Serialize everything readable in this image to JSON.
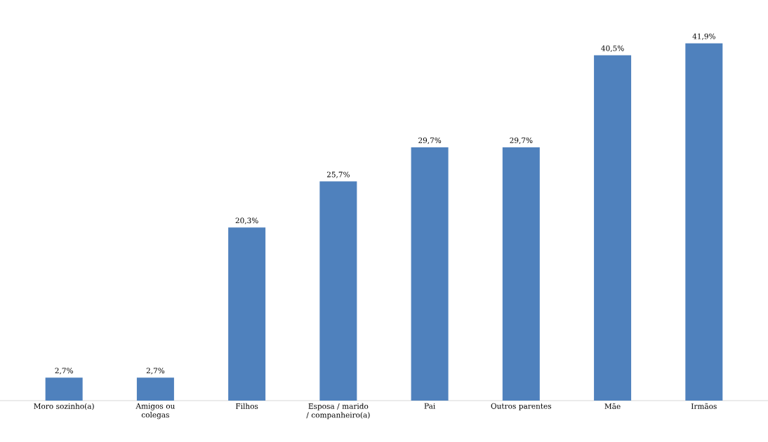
{
  "chart_data": {
    "type": "bar",
    "categories": [
      "Moro sozinho(a)",
      "Amigos ou colegas",
      "Filhos",
      "Esposa / marido / companheiro(a)",
      "Pai",
      "Outros parentes",
      "Mãe",
      "Irmãos"
    ],
    "values": [
      2.7,
      2.7,
      20.3,
      25.7,
      29.7,
      29.7,
      40.5,
      41.9
    ],
    "value_labels": [
      "2,7%",
      "2,7%",
      "20,3%",
      "25,7%",
      "29,7%",
      "29,7%",
      "40,5%",
      "41,9%"
    ],
    "color": "#4f81bd"
  }
}
